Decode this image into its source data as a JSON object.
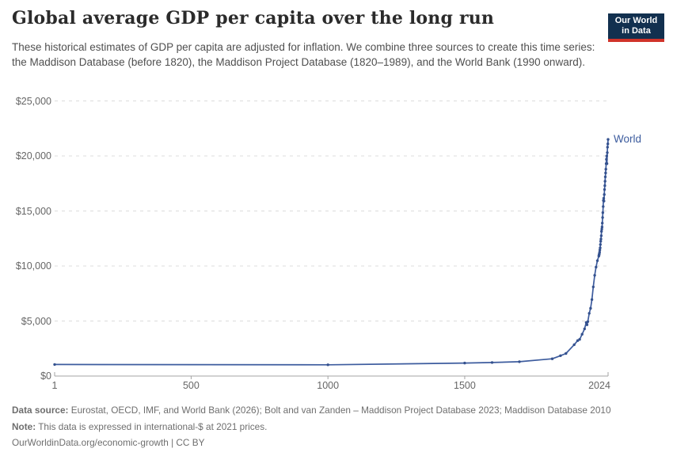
{
  "header": {
    "title": "Global average GDP per capita over the long run",
    "subtitle": "These historical estimates of GDP per capita are adjusted for inflation. We combine three sources to create this time series: the Maddison Database (before 1820), the Maddison Project Database (1820–1989), and the World Bank (1990 onward).",
    "logo": {
      "line1": "Our World",
      "line2": "in Data",
      "bg_color": "#12304f",
      "accent_color": "#d0332a"
    }
  },
  "chart_data": {
    "type": "line",
    "title": "Global average GDP per capita over the long run",
    "xlabel": "",
    "ylabel": "",
    "xlim": [
      1,
      2024
    ],
    "ylim": [
      0,
      25000
    ],
    "grid": "horizontal dashed",
    "legend_position": "end-of-line label",
    "x_ticks": [
      {
        "value": 1,
        "label": "1"
      },
      {
        "value": 500,
        "label": "500"
      },
      {
        "value": 1000,
        "label": "1000"
      },
      {
        "value": 1500,
        "label": "1500"
      },
      {
        "value": 2024,
        "label": "2024"
      }
    ],
    "y_ticks": [
      {
        "value": 0,
        "label": "$0"
      },
      {
        "value": 5000,
        "label": "$5,000"
      },
      {
        "value": 10000,
        "label": "$10,000"
      },
      {
        "value": 15000,
        "label": "$15,000"
      },
      {
        "value": 20000,
        "label": "$20,000"
      },
      {
        "value": 25000,
        "label": "$25,000"
      }
    ],
    "series": [
      {
        "name": "World",
        "color": "#3d5c9e",
        "dot_color": "#34518e",
        "points": [
          [
            1,
            1050
          ],
          [
            1000,
            1020
          ],
          [
            1500,
            1180
          ],
          [
            1600,
            1230
          ],
          [
            1700,
            1300
          ],
          [
            1820,
            1570
          ],
          [
            1850,
            1850
          ],
          [
            1870,
            2050
          ],
          [
            1900,
            2850
          ],
          [
            1913,
            3220
          ],
          [
            1920,
            3330
          ],
          [
            1929,
            3800
          ],
          [
            1938,
            4290
          ],
          [
            1944,
            4870
          ],
          [
            1947,
            4660
          ],
          [
            1950,
            4940
          ],
          [
            1955,
            5700
          ],
          [
            1960,
            6150
          ],
          [
            1965,
            6950
          ],
          [
            1970,
            8100
          ],
          [
            1975,
            9150
          ],
          [
            1980,
            9900
          ],
          [
            1985,
            10480
          ],
          [
            1990,
            10900
          ],
          [
            1991,
            11000
          ],
          [
            1992,
            11100
          ],
          [
            1993,
            11250
          ],
          [
            1994,
            11450
          ],
          [
            1995,
            11650
          ],
          [
            1996,
            11950
          ],
          [
            1997,
            12250
          ],
          [
            1998,
            12450
          ],
          [
            1999,
            12750
          ],
          [
            2000,
            13150
          ],
          [
            2001,
            13350
          ],
          [
            2002,
            13550
          ],
          [
            2003,
            13900
          ],
          [
            2004,
            14400
          ],
          [
            2005,
            14850
          ],
          [
            2006,
            15400
          ],
          [
            2007,
            15950
          ],
          [
            2008,
            16150
          ],
          [
            2009,
            15900
          ],
          [
            2010,
            16500
          ],
          [
            2011,
            16950
          ],
          [
            2012,
            17300
          ],
          [
            2013,
            17700
          ],
          [
            2014,
            18100
          ],
          [
            2015,
            18450
          ],
          [
            2016,
            18800
          ],
          [
            2017,
            19300
          ],
          [
            2018,
            19700
          ],
          [
            2019,
            20000
          ],
          [
            2020,
            19300
          ],
          [
            2021,
            20300
          ],
          [
            2022,
            20800
          ],
          [
            2023,
            21100
          ],
          [
            2024,
            21500
          ]
        ]
      }
    ]
  },
  "footer": {
    "data_source_label": "Data source:",
    "data_source_text": " Eurostat, OECD, IMF, and World Bank (2026); Bolt and van Zanden – Maddison Project Database 2023; Maddison Database 2010",
    "note_label": "Note:",
    "note_text": " This data is expressed in international-$ at 2021 prices.",
    "url_text": "OurWorldinData.org/economic-growth | CC BY"
  }
}
